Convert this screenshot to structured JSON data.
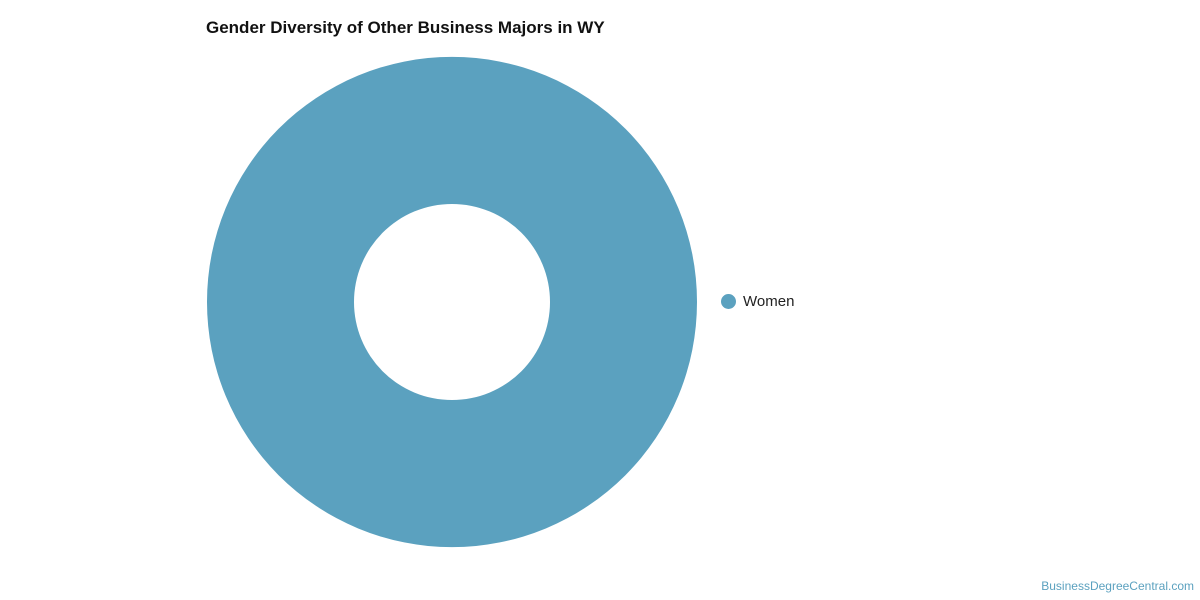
{
  "chart_data": {
    "type": "pie",
    "variant": "donut",
    "title": "Gender Diversity of Other Business Majors in WY",
    "categories": [
      "Women"
    ],
    "values": [
      100
    ],
    "colors": [
      "#5ba1bf"
    ],
    "legend": "right"
  },
  "credit": "BusinessDegreeCentral.com"
}
